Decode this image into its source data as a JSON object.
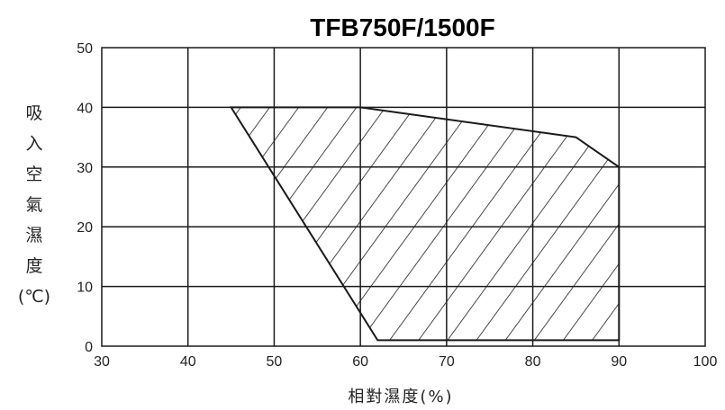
{
  "chart_data": {
    "type": "area",
    "title": "TFB750F/1500F",
    "xlabel": "相對濕度(%)",
    "ylabel": "吸入空氣濕度(℃)",
    "xlim": [
      30,
      100
    ],
    "ylim": [
      0,
      50
    ],
    "xticks": [
      30,
      40,
      50,
      60,
      70,
      80,
      90,
      100
    ],
    "yticks": [
      0,
      10,
      20,
      30,
      40,
      50
    ],
    "grid": true,
    "fill_pattern": "diagonal-hatch",
    "region": {
      "x": [
        45,
        60,
        85,
        90,
        90,
        62
      ],
      "y": [
        40,
        40,
        35,
        30,
        1,
        1
      ]
    }
  }
}
